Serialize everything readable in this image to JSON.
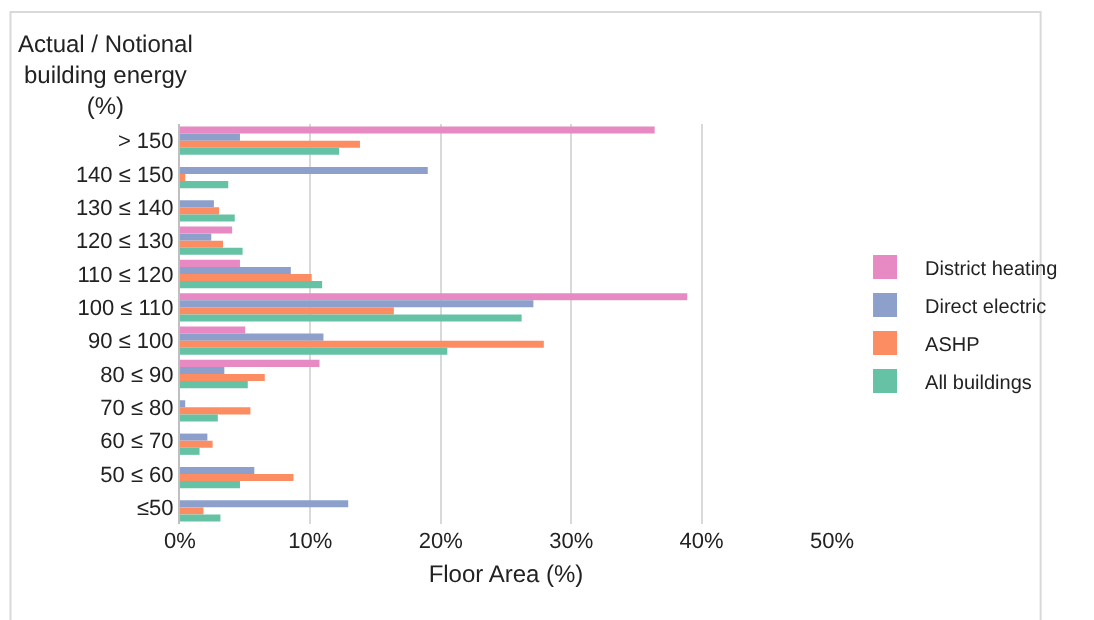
{
  "chart_data": {
    "type": "bar",
    "orientation": "horizontal",
    "ylabel": "Actual / Notional building energy (%)",
    "xlabel": "Floor Area (%)",
    "categories": [
      "> 150",
      "140 ≤ 150",
      "130 ≤ 140",
      "120 ≤ 130",
      "110 ≤ 120",
      "100 ≤ 110",
      "90 ≤ 100",
      "80 ≤ 90",
      "70 ≤ 80",
      "60 ≤ 70",
      "50 ≤ 60",
      "≤50"
    ],
    "series": [
      {
        "name": "District heating",
        "color": "#e78ac3",
        "values": [
          36.4,
          null,
          null,
          4.0,
          4.6,
          38.9,
          5.0,
          10.7,
          null,
          null,
          null,
          null
        ]
      },
      {
        "name": "Direct electric",
        "color": "#8da0cb",
        "values": [
          4.6,
          19.0,
          2.6,
          2.4,
          8.5,
          27.1,
          11.0,
          3.4,
          0.4,
          2.1,
          5.7,
          12.9
        ]
      },
      {
        "name": "ASHP",
        "color": "#fc8d62",
        "values": [
          13.8,
          0.4,
          3.0,
          3.3,
          10.1,
          16.4,
          27.9,
          6.5,
          5.4,
          2.5,
          8.7,
          1.8
        ]
      },
      {
        "name": "All buildings",
        "color": "#66c2a5",
        "values": [
          12.2,
          3.7,
          4.2,
          4.8,
          10.9,
          26.2,
          20.5,
          5.2,
          2.9,
          1.5,
          4.6,
          3.1
        ]
      }
    ],
    "xlim": [
      0,
      50
    ],
    "xticks": [
      {
        "value": 0,
        "label": "0%"
      },
      {
        "value": 10,
        "label": "10%"
      },
      {
        "value": 20,
        "label": "20%"
      },
      {
        "value": 30,
        "label": "30%"
      },
      {
        "value": 40,
        "label": "40%"
      },
      {
        "value": 50,
        "label": "50%"
      }
    ],
    "grid": "x",
    "legend": "right"
  }
}
